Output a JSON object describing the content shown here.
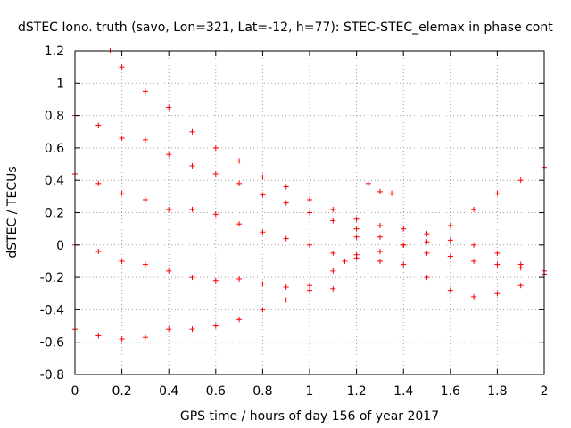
{
  "chart_data": {
    "type": "scatter",
    "title": "dSTEC Iono. truth (savo, Lon=321, Lat=-12, h=77): STEC-STEC_elemax in phase cont",
    "xlabel": "GPS time / hours of day 156 of year 2017",
    "ylabel": "dSTEC  / TECUs",
    "xlim": [
      0,
      2
    ],
    "ylim": [
      -0.8,
      1.2
    ],
    "x_ticks": [
      "0",
      "0.2",
      "0.4",
      "0.6",
      "0.8",
      "1",
      "1.2",
      "1.4",
      "1.6",
      "1.8",
      "2"
    ],
    "y_ticks": [
      "-0.8",
      "-0.6",
      "-0.4",
      "-0.2",
      "0",
      "0.2",
      "0.4",
      "0.6",
      "0.8",
      "1",
      "1.2"
    ],
    "grid": true,
    "legend": "none",
    "marker": "+",
    "color": "#ff0000",
    "series": [
      {
        "x": [
          0.15,
          0.2,
          0.3,
          0.4,
          0.5,
          0.6,
          0.7,
          0.8,
          0.9,
          1.0,
          1.1,
          1.2,
          1.3,
          1.4,
          1.5,
          1.6,
          1.7,
          1.8,
          1.9,
          2.0
        ],
        "values": [
          1.2,
          1.1,
          0.95,
          0.85,
          0.7,
          0.6,
          0.52,
          0.42,
          0.36,
          0.28,
          0.22,
          0.16,
          0.12,
          0.1,
          0.07,
          0.03,
          0.0,
          -0.05,
          -0.12,
          -0.18
        ]
      },
      {
        "x": [
          0.0,
          0.1,
          0.2,
          0.3,
          0.4,
          0.5,
          0.6,
          0.7,
          0.8,
          0.9,
          1.0,
          1.1,
          1.2,
          1.3,
          1.4,
          1.5,
          1.6,
          1.7,
          1.8,
          1.9,
          2.0
        ],
        "values": [
          0.8,
          0.74,
          0.66,
          0.65,
          0.56,
          0.49,
          0.44,
          0.38,
          0.31,
          0.26,
          0.2,
          0.15,
          0.1,
          0.05,
          0.0,
          -0.05,
          -0.07,
          -0.1,
          -0.12,
          -0.14,
          -0.16
        ]
      },
      {
        "x": [
          0.0,
          0.1,
          0.2,
          0.3,
          0.4,
          0.5,
          0.6,
          0.7,
          0.8,
          0.9,
          1.0,
          1.1,
          1.2,
          1.3,
          1.4,
          1.5,
          1.6,
          1.7,
          1.8,
          1.9,
          2.0
        ],
        "values": [
          0.44,
          0.38,
          0.32,
          0.28,
          0.22,
          0.22,
          0.19,
          0.13,
          0.08,
          0.04,
          0.0,
          -0.05,
          -0.08,
          -0.1,
          -0.12,
          -0.2,
          -0.28,
          -0.32,
          -0.3,
          -0.25,
          -0.18
        ]
      },
      {
        "x": [
          0.0,
          0.1,
          0.2,
          0.3,
          0.4,
          0.5,
          0.6,
          0.7,
          0.8,
          0.9,
          1.0,
          1.1,
          1.15,
          1.2,
          1.25,
          1.3,
          1.35
        ],
        "values": [
          0.0,
          -0.04,
          -0.1,
          -0.12,
          -0.16,
          -0.2,
          -0.22,
          -0.21,
          -0.24,
          -0.26,
          -0.25,
          -0.27,
          -0.1,
          0.05,
          0.38,
          0.33,
          0.32
        ]
      },
      {
        "x": [
          0.0,
          0.1,
          0.2,
          0.3,
          0.4,
          0.5,
          0.6,
          0.7,
          0.8,
          0.9,
          1.0,
          1.1,
          1.2,
          1.3,
          1.4,
          1.5,
          1.6,
          1.7,
          1.8,
          1.9,
          2.0
        ],
        "values": [
          -0.52,
          -0.56,
          -0.58,
          -0.57,
          -0.52,
          -0.52,
          -0.5,
          -0.46,
          -0.4,
          -0.34,
          -0.28,
          -0.16,
          -0.06,
          -0.04,
          0.0,
          0.02,
          0.12,
          0.22,
          0.32,
          0.4,
          0.48
        ]
      }
    ]
  }
}
